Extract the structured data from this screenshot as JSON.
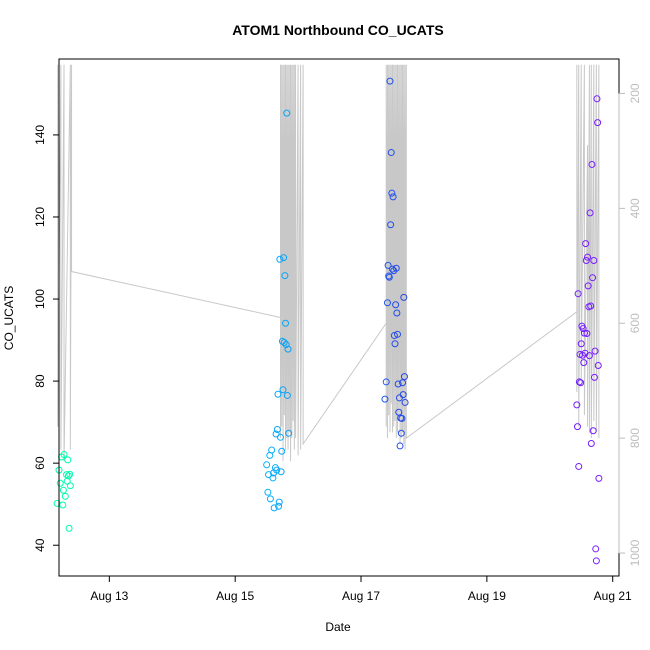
{
  "chart_data": {
    "type": "scatter",
    "title": "ATOM1 Northbound CO_UCATS",
    "xlabel": "Date",
    "ylabel": "CO_UCATS",
    "x_axis": {
      "range": [
        12.2,
        21.1
      ],
      "ticks": [
        {
          "value": 13,
          "label": "Aug 13"
        },
        {
          "value": 15,
          "label": "Aug 15"
        },
        {
          "value": 17,
          "label": "Aug 17"
        },
        {
          "value": 19,
          "label": "Aug 19"
        },
        {
          "value": 21,
          "label": "Aug 21"
        }
      ]
    },
    "y_axis": {
      "range": [
        32.5,
        158.5
      ],
      "ticks": [
        40,
        60,
        80,
        100,
        120,
        140
      ]
    },
    "y2_axis": {
      "label": "",
      "inverted": true,
      "range": [
        1040,
        140
      ],
      "ticks": [
        200,
        400,
        600,
        800,
        1000
      ]
    },
    "colors": {
      "points_start": "#00ffaa",
      "points_end": "#7a1cff",
      "pressure_line": "#c8c8c8"
    },
    "series": [
      {
        "marker": "open-circle",
        "color_by": "time",
        "points": [
          [
            12.17,
            50.2
          ],
          [
            12.2,
            58.3
          ],
          [
            12.22,
            55.1
          ],
          [
            12.24,
            61.5
          ],
          [
            12.26,
            49.8
          ],
          [
            12.27,
            53.4
          ],
          [
            12.28,
            62.1
          ],
          [
            12.3,
            51.9
          ],
          [
            12.32,
            57.2
          ],
          [
            12.33,
            55.6
          ],
          [
            12.34,
            60.8
          ],
          [
            12.35,
            56.9
          ],
          [
            12.36,
            44.1
          ],
          [
            12.37,
            57.3
          ],
          [
            12.38,
            54.5
          ],
          [
            15.5,
            59.6
          ],
          [
            15.52,
            52.9
          ],
          [
            15.53,
            57.2
          ],
          [
            15.55,
            61.9
          ],
          [
            15.56,
            51.3
          ],
          [
            15.58,
            63.2
          ],
          [
            15.6,
            56.4
          ],
          [
            15.61,
            57.6
          ],
          [
            15.62,
            49.1
          ],
          [
            15.64,
            58.9
          ],
          [
            15.65,
            67.1
          ],
          [
            15.66,
            58.3
          ],
          [
            15.67,
            68.2
          ],
          [
            15.68,
            76.8
          ],
          [
            15.69,
            49.5
          ],
          [
            15.7,
            50.5
          ],
          [
            15.71,
            109.7
          ],
          [
            15.72,
            66.3
          ],
          [
            15.73,
            57.9
          ],
          [
            15.74,
            62.9
          ],
          [
            15.75,
            89.7
          ],
          [
            15.76,
            77.9
          ],
          [
            15.77,
            110.1
          ],
          [
            15.78,
            89.4
          ],
          [
            15.79,
            105.7
          ],
          [
            15.8,
            94.1
          ],
          [
            15.81,
            88.9
          ],
          [
            15.82,
            145.3
          ],
          [
            15.83,
            76.5
          ],
          [
            15.84,
            87.8
          ],
          [
            15.85,
            67.3
          ],
          [
            17.38,
            75.6
          ],
          [
            17.4,
            79.8
          ],
          [
            17.42,
            99.1
          ],
          [
            17.43,
            108.2
          ],
          [
            17.44,
            105.6
          ],
          [
            17.45,
            105.3
          ],
          [
            17.46,
            153.1
          ],
          [
            17.47,
            118.1
          ],
          [
            17.48,
            135.7
          ],
          [
            17.49,
            125.8
          ],
          [
            17.5,
            107.3
          ],
          [
            17.51,
            124.9
          ],
          [
            17.52,
            106.9
          ],
          [
            17.53,
            91.1
          ],
          [
            17.54,
            89.1
          ],
          [
            17.55,
            98.6
          ],
          [
            17.56,
            107.5
          ],
          [
            17.57,
            96.6
          ],
          [
            17.58,
            91.4
          ],
          [
            17.59,
            79.3
          ],
          [
            17.6,
            72.4
          ],
          [
            17.61,
            75.9
          ],
          [
            17.62,
            64.2
          ],
          [
            17.63,
            71.0
          ],
          [
            17.64,
            67.3
          ],
          [
            17.65,
            70.9
          ],
          [
            17.66,
            79.6
          ],
          [
            17.67,
            76.7
          ],
          [
            17.68,
            100.4
          ],
          [
            17.69,
            81.1
          ],
          [
            17.7,
            74.8
          ],
          [
            20.43,
            74.2
          ],
          [
            20.44,
            68.9
          ],
          [
            20.45,
            101.3
          ],
          [
            20.46,
            59.2
          ],
          [
            20.47,
            79.8
          ],
          [
            20.48,
            86.5
          ],
          [
            20.49,
            79.6
          ],
          [
            20.5,
            89.1
          ],
          [
            20.51,
            93.4
          ],
          [
            20.52,
            86.3
          ],
          [
            20.53,
            92.8
          ],
          [
            20.54,
            84.5
          ],
          [
            20.55,
            91.7
          ],
          [
            20.56,
            86.8
          ],
          [
            20.57,
            113.5
          ],
          [
            20.58,
            109.4
          ],
          [
            20.59,
            91.6
          ],
          [
            20.6,
            110.2
          ],
          [
            20.61,
            103.2
          ],
          [
            20.62,
            98.1
          ],
          [
            20.63,
            86.2
          ],
          [
            20.64,
            121.0
          ],
          [
            20.65,
            98.3
          ],
          [
            20.66,
            64.8
          ],
          [
            20.67,
            132.8
          ],
          [
            20.68,
            105.2
          ],
          [
            20.69,
            67.9
          ],
          [
            20.7,
            109.4
          ],
          [
            20.71,
            80.9
          ],
          [
            20.72,
            87.3
          ],
          [
            20.73,
            39.1
          ],
          [
            20.74,
            36.2
          ],
          [
            20.75,
            148.8
          ],
          [
            20.76,
            143.0
          ],
          [
            20.77,
            83.8
          ],
          [
            20.78,
            56.3
          ]
        ]
      }
    ],
    "pressure_series": {
      "axis": "y2",
      "points": [
        [
          12.18,
          150
        ],
        [
          12.18,
          780
        ],
        [
          12.23,
          150
        ],
        [
          12.23,
          820
        ],
        [
          12.28,
          150
        ],
        [
          12.28,
          840
        ],
        [
          12.38,
          150
        ],
        [
          12.38,
          820
        ],
        [
          12.4,
          150
        ],
        [
          12.4,
          510
        ],
        [
          15.72,
          590
        ],
        [
          15.72,
          150
        ],
        [
          15.72,
          800
        ],
        [
          15.74,
          150
        ],
        [
          15.74,
          780
        ],
        [
          15.76,
          150
        ],
        [
          15.76,
          840
        ],
        [
          15.78,
          150
        ],
        [
          15.78,
          760
        ],
        [
          15.8,
          150
        ],
        [
          15.8,
          820
        ],
        [
          15.82,
          150
        ],
        [
          15.82,
          800
        ],
        [
          15.84,
          150
        ],
        [
          15.84,
          820
        ],
        [
          15.86,
          150
        ],
        [
          15.86,
          790
        ],
        [
          15.88,
          150
        ],
        [
          15.88,
          840
        ],
        [
          15.9,
          150
        ],
        [
          15.9,
          800
        ],
        [
          15.92,
          150
        ],
        [
          15.92,
          770
        ],
        [
          15.94,
          150
        ],
        [
          15.94,
          820
        ],
        [
          15.96,
          150
        ],
        [
          15.96,
          800
        ],
        [
          16.0,
          150
        ],
        [
          16.0,
          830
        ],
        [
          16.04,
          150
        ],
        [
          16.04,
          820
        ],
        [
          16.08,
          150
        ],
        [
          16.08,
          810
        ],
        [
          17.4,
          600
        ],
        [
          17.4,
          150
        ],
        [
          17.4,
          780
        ],
        [
          17.42,
          150
        ],
        [
          17.42,
          800
        ],
        [
          17.44,
          150
        ],
        [
          17.44,
          760
        ],
        [
          17.46,
          150
        ],
        [
          17.46,
          790
        ],
        [
          17.48,
          150
        ],
        [
          17.48,
          740
        ],
        [
          17.5,
          150
        ],
        [
          17.5,
          790
        ],
        [
          17.52,
          150
        ],
        [
          17.52,
          780
        ],
        [
          17.54,
          150
        ],
        [
          17.54,
          770
        ],
        [
          17.56,
          150
        ],
        [
          17.56,
          800
        ],
        [
          17.58,
          150
        ],
        [
          17.58,
          790
        ],
        [
          17.6,
          150
        ],
        [
          17.6,
          760
        ],
        [
          17.62,
          150
        ],
        [
          17.62,
          810
        ],
        [
          17.64,
          150
        ],
        [
          17.64,
          800
        ],
        [
          17.66,
          150
        ],
        [
          17.66,
          790
        ],
        [
          17.68,
          150
        ],
        [
          17.68,
          810
        ],
        [
          17.7,
          150
        ],
        [
          17.7,
          820
        ],
        [
          17.72,
          150
        ],
        [
          17.72,
          800
        ],
        [
          20.43,
          580
        ],
        [
          20.43,
          150
        ],
        [
          20.43,
          720
        ],
        [
          20.46,
          150
        ],
        [
          20.46,
          780
        ],
        [
          20.5,
          150
        ],
        [
          20.5,
          700
        ],
        [
          20.55,
          150
        ],
        [
          20.55,
          760
        ],
        [
          20.6,
          290
        ],
        [
          20.6,
          780
        ],
        [
          20.63,
          150
        ],
        [
          20.63,
          790
        ],
        [
          20.66,
          150
        ],
        [
          20.66,
          800
        ],
        [
          20.7,
          150
        ],
        [
          20.7,
          770
        ],
        [
          20.74,
          150
        ],
        [
          20.74,
          790
        ],
        [
          20.78,
          150
        ],
        [
          20.78,
          800
        ]
      ]
    }
  }
}
